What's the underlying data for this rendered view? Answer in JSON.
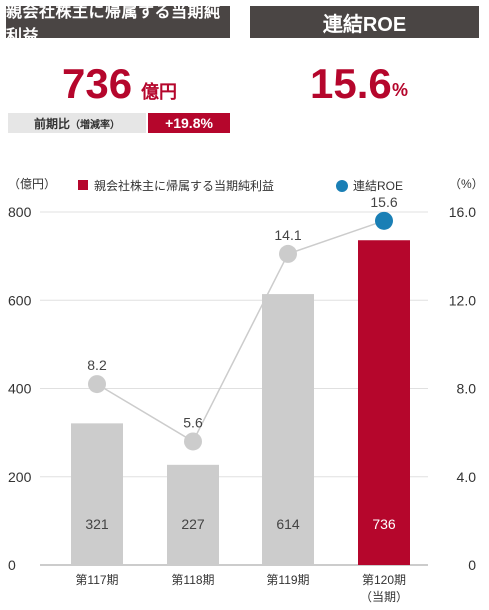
{
  "header": {
    "left_title": "親会社株主に帰属する当期純利益",
    "right_title": "連結ROE"
  },
  "kpi": {
    "profit_value": "736",
    "profit_unit": "億円",
    "roe_value": "15.6",
    "roe_unit": "%",
    "yoy_label": "前期比",
    "yoy_label_note": "（増減率）",
    "yoy_value": "+19.8%"
  },
  "colors": {
    "accent": "#b5062c",
    "bar_gray": "#cccccc",
    "dot_gray": "#cccccc",
    "roe_blue": "#1a7fb5",
    "header_bg": "#4a4544"
  },
  "chart_data": {
    "type": "bar",
    "categories": [
      "第117期",
      "第118期",
      "第119期",
      "第120期"
    ],
    "category_sub": [
      "",
      "",
      "",
      "（当期）"
    ],
    "series": [
      {
        "name": "親会社株主に帰属する当期純利益",
        "values": [
          321,
          227,
          614,
          736
        ],
        "axis": "left"
      },
      {
        "name": "連結ROE",
        "values": [
          8.2,
          5.6,
          14.1,
          15.6
        ],
        "axis": "right",
        "type": "line"
      }
    ],
    "left_unit": "（億円）",
    "right_unit": "（%）",
    "left_ticks": [
      "0",
      "200",
      "400",
      "600",
      "800"
    ],
    "right_ticks": [
      "0",
      "4.0",
      "8.0",
      "12.0",
      "16.0"
    ],
    "ylim_left": [
      0,
      800
    ],
    "ylim_right": [
      0,
      16
    ],
    "legend_position": "top",
    "grid": true
  }
}
